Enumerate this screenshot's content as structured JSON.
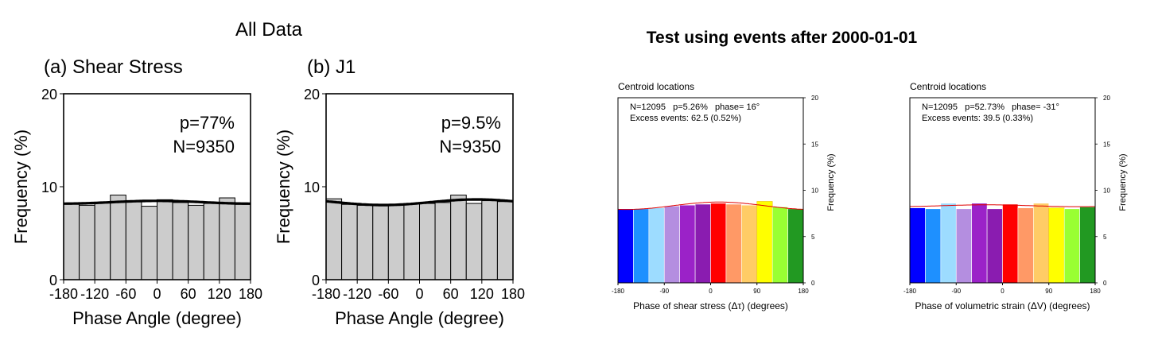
{
  "left_title": "All Data",
  "right_title": "Test using events after 2000-01-01",
  "chart_data": [
    {
      "type": "bar",
      "panel_title": "(a) Shear Stress",
      "xlabel": "Phase Angle (degree)",
      "ylabel": "Frequency (%)",
      "xlim": [
        -180,
        180
      ],
      "ylim": [
        0,
        20
      ],
      "xticks": [
        "-180",
        "-120",
        "-60",
        "0",
        "60",
        "120",
        "180"
      ],
      "yticks": [
        "0",
        "10",
        "20"
      ],
      "annotations": [
        "p=77%",
        "N=9350"
      ],
      "bin_edges": [
        -180,
        -150,
        -120,
        -90,
        -60,
        -30,
        0,
        30,
        60,
        90,
        120,
        150,
        180
      ],
      "values": [
        8.2,
        8.0,
        8.3,
        9.1,
        8.4,
        7.9,
        8.6,
        8.3,
        8.0,
        8.2,
        8.8,
        8.1
      ],
      "fit": {
        "mean": 8.33,
        "amplitude": 0.15,
        "phase": 0
      }
    },
    {
      "type": "bar",
      "panel_title": "(b) J1",
      "xlabel": "Phase Angle (degree)",
      "ylabel": "Frequency (%)",
      "xlim": [
        -180,
        180
      ],
      "ylim": [
        0,
        20
      ],
      "xticks": [
        "-180",
        "-120",
        "-60",
        "0",
        "60",
        "120",
        "180"
      ],
      "yticks": [
        "0",
        "10",
        "20"
      ],
      "annotations": [
        "p=9.5%",
        "N=9350"
      ],
      "bin_edges": [
        -180,
        -150,
        -120,
        -90,
        -60,
        -30,
        0,
        30,
        60,
        90,
        120,
        150,
        180
      ],
      "values": [
        8.7,
        8.1,
        8.0,
        8.0,
        8.1,
        8.2,
        8.2,
        8.3,
        9.1,
        8.2,
        8.5,
        8.4
      ],
      "fit": {
        "mean": 8.33,
        "amplitude": 0.3,
        "phase": 110
      }
    },
    {
      "type": "bar",
      "panel_title": "Centroid locations",
      "xlabel": "Phase of shear stress (Δτ) (degrees)",
      "ylabel": "Frequency (%)",
      "xlim": [
        -180,
        180
      ],
      "ylim": [
        0,
        20
      ],
      "xticks": [
        "-180",
        "-90",
        "0",
        "90",
        "180"
      ],
      "yticks": [
        "0",
        "5",
        "10",
        "15",
        "20"
      ],
      "annotations": [
        "N=12095   p=5.26%   phase= 16°",
        "Excess events: 62.5 (0.52%)"
      ],
      "bin_edges": [
        -180,
        -150,
        -120,
        -90,
        -60,
        -30,
        0,
        30,
        60,
        90,
        120,
        150,
        180
      ],
      "values": [
        8.0,
        8.0,
        8.1,
        8.3,
        8.4,
        8.5,
        8.6,
        8.5,
        8.4,
        8.8,
        8.2,
        8.0
      ],
      "fit": {
        "mean": 8.33,
        "amplitude": 0.4,
        "phase": 16
      },
      "bar_colors": [
        "#0000ff",
        "#1e90ff",
        "#9ddcff",
        "#b48ee0",
        "#9b22c8",
        "#8a1cb0",
        "#ff0000",
        "#ff9966",
        "#ffcc66",
        "#ffff00",
        "#99ff33",
        "#229922"
      ]
    },
    {
      "type": "bar",
      "panel_title": "Centroid locations",
      "xlabel": "Phase of volumetric strain (ΔV) (degrees)",
      "ylabel": "Frequency (%)",
      "xlim": [
        -180,
        180
      ],
      "ylim": [
        0,
        20
      ],
      "xticks": [
        "-180",
        "-90",
        "0",
        "90",
        "180"
      ],
      "yticks": [
        "0",
        "5",
        "10",
        "15",
        "20"
      ],
      "annotations": [
        "N=12095   p=52.73%   phase= -31°",
        "Excess events: 39.5 (0.33%)"
      ],
      "bin_edges": [
        -180,
        -150,
        -120,
        -90,
        -60,
        -30,
        0,
        30,
        60,
        90,
        120,
        150,
        180
      ],
      "values": [
        8.1,
        8.0,
        8.6,
        8.0,
        8.6,
        8.0,
        8.5,
        8.1,
        8.6,
        8.1,
        8.0,
        8.2
      ],
      "fit": {
        "mean": 8.33,
        "amplitude": 0.1,
        "phase": -31
      },
      "bar_colors": [
        "#0000ff",
        "#1e90ff",
        "#9ddcff",
        "#b48ee0",
        "#9b22c8",
        "#8a1cb0",
        "#ff0000",
        "#ff9966",
        "#ffcc66",
        "#ffff00",
        "#99ff33",
        "#229922"
      ]
    }
  ]
}
